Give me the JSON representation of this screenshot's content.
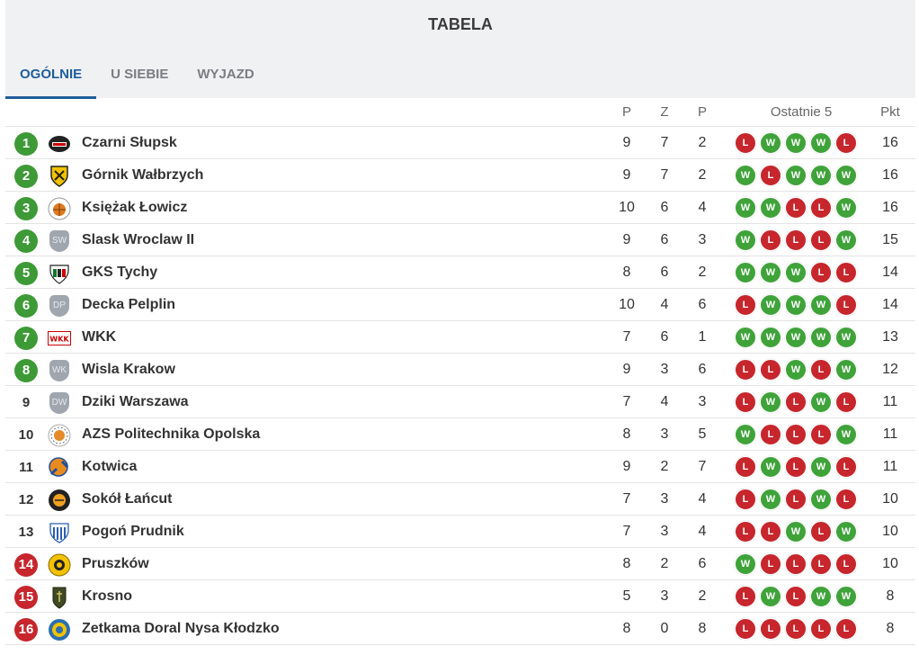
{
  "title": "TABELA",
  "tabs": [
    {
      "label": "OGÓLNIE",
      "active": true
    },
    {
      "label": "U SIEBIE",
      "active": false
    },
    {
      "label": "WYJAZD",
      "active": false
    }
  ],
  "columns": {
    "played": "P",
    "won": "Z",
    "lost": "P",
    "last5": "Ostatnie 5",
    "points": "Pkt"
  },
  "colors": {
    "promotion": "#3d9a36",
    "relegation": "#c6262c",
    "win": "#3fa33a",
    "loss": "#c6262c",
    "active_tab": "#1f5d9c"
  },
  "rows": [
    {
      "pos": "1",
      "zone": "green",
      "logo": "czarni-slupsk-logo",
      "team": "Czarni Słupsk",
      "p": "9",
      "z": "7",
      "l": "2",
      "last5": [
        "L",
        "W",
        "W",
        "W",
        "L"
      ],
      "pkt": "16"
    },
    {
      "pos": "2",
      "zone": "green",
      "logo": "gornik-walbrzych-logo",
      "team": "Górnik Wałbrzych",
      "p": "9",
      "z": "7",
      "l": "2",
      "last5": [
        "W",
        "L",
        "W",
        "W",
        "W"
      ],
      "pkt": "16"
    },
    {
      "pos": "3",
      "zone": "green",
      "logo": "ksiezak-lowicz-logo",
      "team": "Księżak Łowicz",
      "p": "10",
      "z": "6",
      "l": "4",
      "last5": [
        "W",
        "W",
        "L",
        "L",
        "W"
      ],
      "pkt": "16"
    },
    {
      "pos": "4",
      "zone": "green",
      "logo": "placeholder-badge",
      "badge": "SW",
      "team": "Slask Wroclaw II",
      "p": "9",
      "z": "6",
      "l": "3",
      "last5": [
        "W",
        "L",
        "L",
        "L",
        "W"
      ],
      "pkt": "15"
    },
    {
      "pos": "5",
      "zone": "green",
      "logo": "gks-tychy-logo",
      "team": "GKS Tychy",
      "p": "8",
      "z": "6",
      "l": "2",
      "last5": [
        "W",
        "W",
        "W",
        "L",
        "L"
      ],
      "pkt": "14"
    },
    {
      "pos": "6",
      "zone": "green",
      "logo": "placeholder-badge",
      "badge": "DP",
      "team": "Decka Pelplin",
      "p": "10",
      "z": "4",
      "l": "6",
      "last5": [
        "L",
        "W",
        "W",
        "W",
        "L"
      ],
      "pkt": "14"
    },
    {
      "pos": "7",
      "zone": "green",
      "logo": "wkk-logo",
      "team": "WKK",
      "p": "7",
      "z": "6",
      "l": "1",
      "last5": [
        "W",
        "W",
        "W",
        "W",
        "W"
      ],
      "pkt": "13"
    },
    {
      "pos": "8",
      "zone": "green",
      "logo": "placeholder-badge",
      "badge": "WK",
      "team": "Wisla Krakow",
      "p": "9",
      "z": "3",
      "l": "6",
      "last5": [
        "L",
        "L",
        "W",
        "L",
        "W"
      ],
      "pkt": "12"
    },
    {
      "pos": "9",
      "zone": "",
      "logo": "placeholder-badge",
      "badge": "DW",
      "team": "Dziki Warszawa",
      "p": "7",
      "z": "4",
      "l": "3",
      "last5": [
        "L",
        "W",
        "L",
        "W",
        "L"
      ],
      "pkt": "11"
    },
    {
      "pos": "10",
      "zone": "",
      "logo": "azs-politechnika-opolska-logo",
      "team": "AZS Politechnika Opolska",
      "p": "8",
      "z": "3",
      "l": "5",
      "last5": [
        "W",
        "L",
        "L",
        "L",
        "W"
      ],
      "pkt": "11"
    },
    {
      "pos": "11",
      "zone": "",
      "logo": "kotwica-logo",
      "team": "Kotwica",
      "p": "9",
      "z": "2",
      "l": "7",
      "last5": [
        "L",
        "W",
        "L",
        "W",
        "L"
      ],
      "pkt": "11"
    },
    {
      "pos": "12",
      "zone": "",
      "logo": "sokol-lancut-logo",
      "team": "Sokół Łańcut",
      "p": "7",
      "z": "3",
      "l": "4",
      "last5": [
        "L",
        "W",
        "L",
        "W",
        "L"
      ],
      "pkt": "10"
    },
    {
      "pos": "13",
      "zone": "",
      "logo": "pogon-prudnik-logo",
      "team": "Pogoń Prudnik",
      "p": "7",
      "z": "3",
      "l": "4",
      "last5": [
        "L",
        "L",
        "W",
        "L",
        "W"
      ],
      "pkt": "10"
    },
    {
      "pos": "14",
      "zone": "red",
      "logo": "pruszkow-logo",
      "team": "Pruszków",
      "p": "8",
      "z": "2",
      "l": "6",
      "last5": [
        "W",
        "L",
        "L",
        "L",
        "L"
      ],
      "pkt": "10"
    },
    {
      "pos": "15",
      "zone": "red",
      "logo": "krosno-logo",
      "team": "Krosno",
      "p": "5",
      "z": "3",
      "l": "2",
      "last5": [
        "L",
        "W",
        "L",
        "W",
        "W"
      ],
      "pkt": "8"
    },
    {
      "pos": "16",
      "zone": "red",
      "logo": "zetkama-doral-nysa-klodzko-logo",
      "team": "Zetkama Doral Nysa Kłodzko",
      "p": "8",
      "z": "0",
      "l": "8",
      "last5": [
        "L",
        "L",
        "L",
        "L",
        "L"
      ],
      "pkt": "8"
    }
  ]
}
